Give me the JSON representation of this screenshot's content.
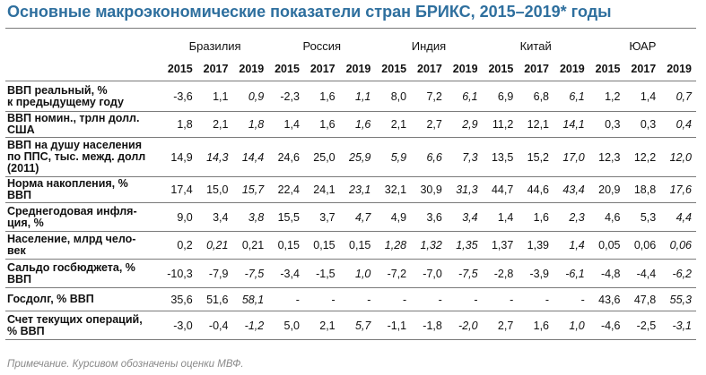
{
  "title": "Основные макроэкономические показатели стран БРИКС, 2015–2019* годы",
  "countries": [
    "Бразилия",
    "Россия",
    "Индия",
    "Китай",
    "ЮАР"
  ],
  "years": [
    "2015",
    "2017",
    "2019"
  ],
  "rows": [
    {
      "label": "ВВП реальный, %\nк предыдущему году",
      "values": [
        "-3,6",
        "1,1",
        "0,9",
        "-2,3",
        "1,6",
        "1,1",
        "8,0",
        "7,2",
        "6,1",
        "6,9",
        "6,8",
        "6,1",
        "1,2",
        "1,4",
        "0,7"
      ],
      "estimates": [
        false,
        false,
        true,
        false,
        false,
        true,
        false,
        false,
        true,
        false,
        false,
        true,
        false,
        false,
        true
      ]
    },
    {
      "label": "ВВП номин., трлн долл.\nСША",
      "values": [
        "1,8",
        "2,1",
        "1,8",
        "1,4",
        "1,6",
        "1,6",
        "2,1",
        "2,7",
        "2,9",
        "11,2",
        "12,1",
        "14,1",
        "0,3",
        "0,3",
        "0,4"
      ],
      "estimates": [
        false,
        false,
        true,
        false,
        false,
        true,
        false,
        false,
        true,
        false,
        false,
        true,
        false,
        false,
        true
      ]
    },
    {
      "label": "ВВП на душу населения\nпо ППС, тыс. межд. долл\n(2011)",
      "values": [
        "14,9",
        "14,3",
        "14,4",
        "24,6",
        "25,0",
        "25,9",
        "5,9",
        "6,6",
        "7,3",
        "13,5",
        "15,2",
        "17,0",
        "12,3",
        "12,2",
        "12,0"
      ],
      "estimates": [
        false,
        true,
        true,
        false,
        false,
        true,
        true,
        true,
        true,
        false,
        false,
        true,
        false,
        false,
        true
      ]
    },
    {
      "label": "Норма накопления, %\nВВП",
      "values": [
        "17,4",
        "15,0",
        "15,7",
        "22,4",
        "24,1",
        "23,1",
        "32,1",
        "30,9",
        "31,3",
        "44,7",
        "44,6",
        "43,4",
        "20,9",
        "18,8",
        "17,6"
      ],
      "estimates": [
        false,
        false,
        true,
        false,
        false,
        true,
        false,
        false,
        true,
        false,
        false,
        true,
        false,
        false,
        true
      ]
    },
    {
      "label": "Среднегодовая инфля-\nция, %",
      "values": [
        "9,0",
        "3,4",
        "3,8",
        "15,5",
        "3,7",
        "4,7",
        "4,9",
        "3,6",
        "3,4",
        "1,4",
        "1,6",
        "2,3",
        "4,6",
        "5,3",
        "4,4"
      ],
      "estimates": [
        false,
        false,
        true,
        false,
        false,
        true,
        false,
        false,
        true,
        false,
        false,
        true,
        false,
        false,
        true
      ]
    },
    {
      "label": "Население, млрд чело-\nвек",
      "values": [
        "0,2",
        "0,21",
        "0,21",
        "0,15",
        "0,15",
        "0,15",
        "1,28",
        "1,32",
        "1,35",
        "1,37",
        "1,39",
        "1,4",
        "0,05",
        "0,06",
        "0,06"
      ],
      "estimates": [
        false,
        true,
        false,
        false,
        false,
        false,
        true,
        true,
        true,
        false,
        false,
        true,
        false,
        false,
        true
      ]
    },
    {
      "label": "Сальдо госбюджета, %\nВВП",
      "values": [
        "-10,3",
        "-7,9",
        "-7,5",
        "-3,4",
        "-1,5",
        "1,0",
        "-7,2",
        "-7,0",
        "-7,5",
        "-2,8",
        "-3,9",
        "-6,1",
        "-4,8",
        "-4,4",
        "-6,2"
      ],
      "estimates": [
        false,
        false,
        true,
        false,
        false,
        true,
        false,
        false,
        true,
        false,
        false,
        true,
        false,
        false,
        true
      ]
    },
    {
      "label": "Госдолг, % ВВП",
      "values": [
        "35,6",
        "51,6",
        "58,1",
        "-",
        "-",
        "-",
        "-",
        "-",
        "-",
        "-",
        "-",
        "-",
        "43,6",
        "47,8",
        "55,3"
      ],
      "estimates": [
        false,
        false,
        true,
        false,
        false,
        false,
        false,
        false,
        false,
        false,
        false,
        false,
        false,
        false,
        true
      ]
    },
    {
      "label": "Счет текущих операций,\n% ВВП",
      "values": [
        "-3,0",
        "-0,4",
        "-1,2",
        "5,0",
        "2,1",
        "5,7",
        "-1,1",
        "-1,8",
        "-2,0",
        "2,7",
        "1,6",
        "1,0",
        "-4,6",
        "-2,5",
        "-3,1"
      ],
      "estimates": [
        false,
        false,
        true,
        false,
        false,
        true,
        false,
        false,
        true,
        false,
        false,
        true,
        false,
        false,
        true
      ]
    }
  ],
  "note": "Примечание. Курсивом обозначены оценки МВФ.",
  "colors": {
    "title": "#2e6f9e",
    "rule": "#7a7a7a",
    "note": "#8a8a8a"
  }
}
